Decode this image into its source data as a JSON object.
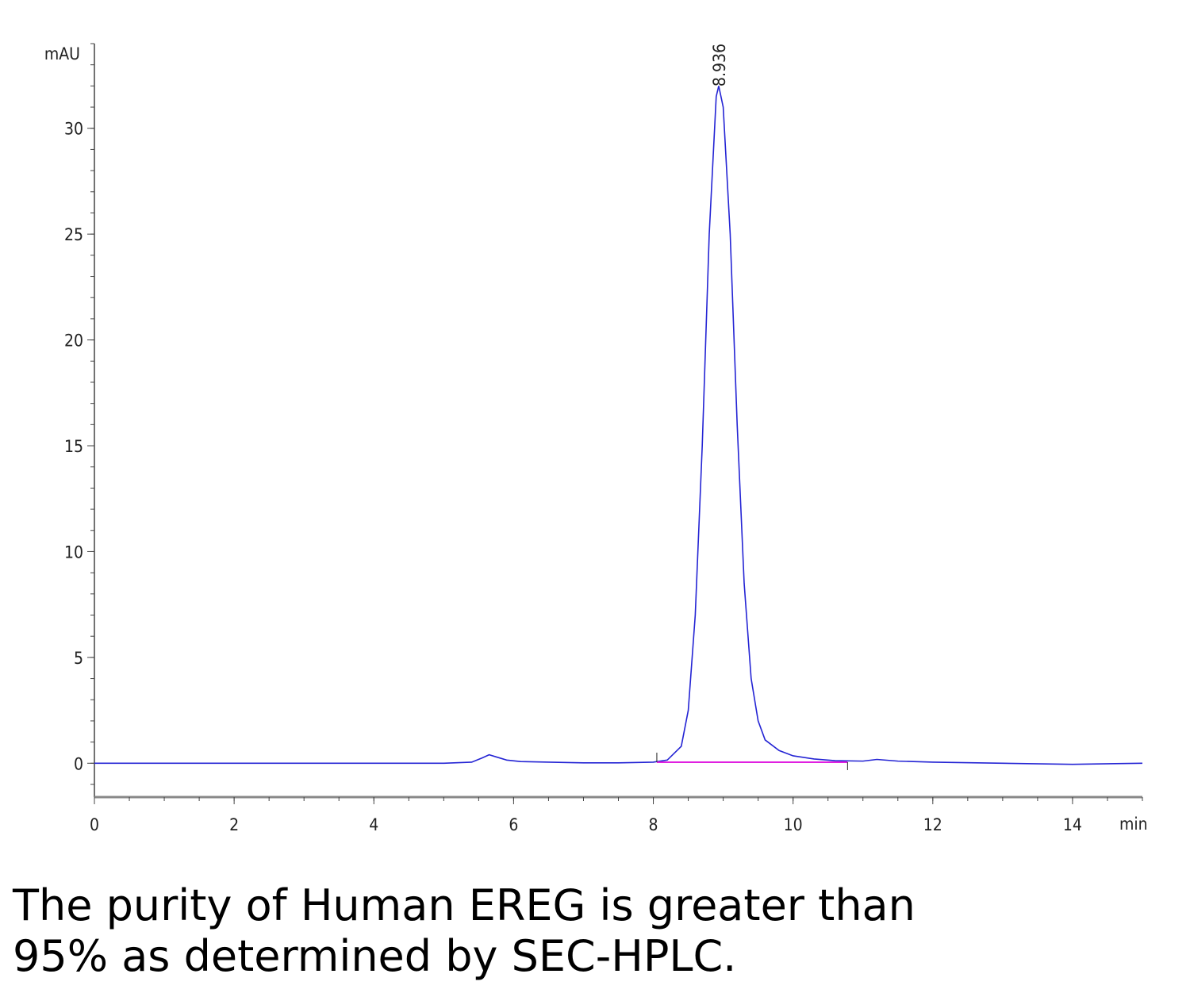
{
  "chart_data": {
    "type": "line",
    "y_label": "mAU",
    "x_label": "min",
    "x": [
      0,
      1,
      2,
      3,
      4,
      5,
      5.4,
      5.55,
      5.65,
      5.75,
      5.9,
      6.1,
      6.5,
      7,
      7.5,
      8,
      8.2,
      8.4,
      8.5,
      8.6,
      8.7,
      8.8,
      8.9,
      8.936,
      9.0,
      9.1,
      9.2,
      9.3,
      9.4,
      9.5,
      9.6,
      9.8,
      10,
      10.3,
      10.6,
      11,
      11.2,
      11.5,
      12,
      13,
      14,
      15
    ],
    "series": [
      {
        "color": "#2424d4",
        "values": [
          0,
          0,
          0,
          0,
          0,
          0,
          0.05,
          0.25,
          0.4,
          0.3,
          0.15,
          0.08,
          0.05,
          0.02,
          0.02,
          0.05,
          0.15,
          0.8,
          2.5,
          7,
          15,
          25,
          31.5,
          32,
          31,
          25,
          16,
          8.5,
          4,
          2,
          1.1,
          0.6,
          0.35,
          0.2,
          0.12,
          0.1,
          0.18,
          0.1,
          0.05,
          0,
          -0.05,
          0
        ]
      }
    ],
    "baseline": {
      "x": [
        8.05,
        10.78
      ],
      "values": [
        0.05,
        0.05
      ],
      "color": "#e020e0"
    },
    "annotation": {
      "x": 8.936,
      "label": "8.936"
    },
    "xlim": [
      0,
      15
    ],
    "ylim": [
      -1.6,
      34
    ],
    "xticks": [
      0,
      2,
      4,
      6,
      8,
      10,
      12,
      14
    ],
    "yticks": [
      0,
      5,
      10,
      15,
      20,
      25,
      30
    ]
  },
  "caption": [
    "The purity of Human EREG is greater than",
    "95% as determined by SEC-HPLC."
  ]
}
